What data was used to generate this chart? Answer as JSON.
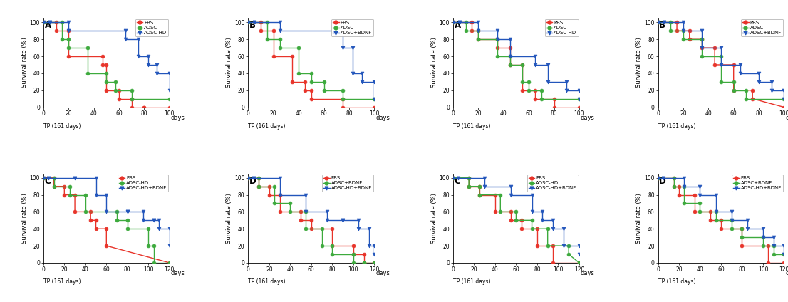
{
  "panels": [
    {
      "label": "A",
      "row": 0,
      "col": 0,
      "legend": [
        "PBS",
        "ADSC",
        "ADSC-HD"
      ],
      "colors": [
        "#e8342a",
        "#3daa3d",
        "#2255bb"
      ],
      "marker": [
        "o",
        "o",
        "v"
      ],
      "xmax": 100,
      "xticks": [
        0,
        20,
        40,
        60,
        80,
        100
      ],
      "series": [
        {
          "x": [
            0,
            10,
            10,
            20,
            20,
            47,
            47,
            50,
            50,
            60,
            60,
            70,
            70,
            80,
            80,
            100
          ],
          "y": [
            100,
            100,
            90,
            90,
            60,
            60,
            50,
            50,
            20,
            20,
            10,
            10,
            0,
            0,
            0,
            0
          ]
        },
        {
          "x": [
            0,
            15,
            15,
            20,
            20,
            35,
            35,
            50,
            50,
            57,
            57,
            70,
            70,
            100
          ],
          "y": [
            100,
            100,
            80,
            80,
            70,
            70,
            40,
            40,
            30,
            30,
            20,
            20,
            10,
            10
          ]
        },
        {
          "x": [
            0,
            5,
            5,
            20,
            20,
            65,
            65,
            75,
            75,
            83,
            83,
            90,
            90,
            100,
            100
          ],
          "y": [
            100,
            100,
            100,
            100,
            90,
            90,
            80,
            80,
            60,
            60,
            50,
            50,
            40,
            40,
            20
          ]
        }
      ]
    },
    {
      "label": "B",
      "row": 0,
      "col": 1,
      "legend": [
        "PBS",
        "ADSC",
        "ADSC+BDNF"
      ],
      "colors": [
        "#e8342a",
        "#3daa3d",
        "#2255bb"
      ],
      "marker": [
        "o",
        "o",
        "v"
      ],
      "xmax": 100,
      "xticks": [
        0,
        20,
        40,
        60,
        80,
        100
      ],
      "series": [
        {
          "x": [
            0,
            10,
            10,
            20,
            20,
            35,
            35,
            45,
            45,
            50,
            50,
            75,
            75,
            100
          ],
          "y": [
            100,
            100,
            90,
            90,
            60,
            60,
            30,
            30,
            20,
            20,
            10,
            10,
            0,
            0
          ]
        },
        {
          "x": [
            0,
            15,
            15,
            25,
            25,
            40,
            40,
            50,
            50,
            60,
            60,
            75,
            75,
            100
          ],
          "y": [
            100,
            100,
            80,
            80,
            70,
            70,
            40,
            40,
            30,
            30,
            20,
            20,
            10,
            10
          ]
        },
        {
          "x": [
            0,
            5,
            5,
            25,
            25,
            75,
            75,
            83,
            83,
            90,
            90,
            100,
            100
          ],
          "y": [
            100,
            100,
            100,
            100,
            90,
            90,
            70,
            70,
            40,
            40,
            30,
            30,
            10
          ]
        }
      ]
    },
    {
      "label": "C",
      "row": 1,
      "col": 0,
      "legend": [
        "PBS",
        "ADSC-HD",
        "ADSC-HD+BDNF"
      ],
      "colors": [
        "#e8342a",
        "#3daa3d",
        "#2255bb"
      ],
      "marker": [
        "o",
        "o",
        "v"
      ],
      "xmax": 120,
      "xticks": [
        0,
        20,
        40,
        60,
        80,
        100,
        120
      ],
      "series": [
        {
          "x": [
            0,
            10,
            10,
            20,
            20,
            30,
            30,
            45,
            45,
            50,
            50,
            60,
            60,
            120
          ],
          "y": [
            100,
            100,
            90,
            90,
            80,
            80,
            60,
            60,
            50,
            50,
            40,
            40,
            20,
            0
          ]
        },
        {
          "x": [
            0,
            10,
            10,
            25,
            25,
            40,
            40,
            70,
            70,
            80,
            80,
            100,
            100,
            105,
            105,
            120
          ],
          "y": [
            100,
            100,
            90,
            90,
            80,
            80,
            60,
            60,
            50,
            50,
            40,
            40,
            20,
            20,
            0,
            0
          ]
        },
        {
          "x": [
            0,
            5,
            5,
            30,
            30,
            50,
            50,
            60,
            60,
            80,
            80,
            95,
            95,
            105,
            105,
            110,
            110,
            120,
            120
          ],
          "y": [
            100,
            100,
            100,
            100,
            100,
            100,
            80,
            80,
            60,
            60,
            60,
            60,
            50,
            50,
            50,
            50,
            40,
            40,
            20
          ]
        }
      ]
    },
    {
      "label": "D",
      "row": 1,
      "col": 1,
      "legend": [
        "PBS",
        "ADSC+BDNF",
        "ADSC-HD+BDNF"
      ],
      "colors": [
        "#e8342a",
        "#3daa3d",
        "#2255bb"
      ],
      "marker": [
        "o",
        "o",
        "v"
      ],
      "xmax": 120,
      "xticks": [
        0,
        20,
        40,
        60,
        80,
        100,
        120
      ],
      "series": [
        {
          "x": [
            0,
            10,
            10,
            20,
            20,
            30,
            30,
            50,
            50,
            60,
            60,
            80,
            80,
            100,
            100,
            110,
            110,
            120
          ],
          "y": [
            100,
            100,
            90,
            90,
            80,
            80,
            60,
            60,
            50,
            50,
            40,
            40,
            20,
            20,
            10,
            10,
            0,
            0
          ]
        },
        {
          "x": [
            0,
            10,
            10,
            25,
            25,
            40,
            40,
            55,
            55,
            70,
            70,
            80,
            80,
            100,
            100,
            110,
            110,
            120
          ],
          "y": [
            100,
            100,
            90,
            90,
            70,
            70,
            60,
            60,
            40,
            40,
            20,
            20,
            10,
            10,
            0,
            0,
            0,
            0
          ]
        },
        {
          "x": [
            0,
            5,
            5,
            30,
            30,
            55,
            55,
            75,
            75,
            90,
            90,
            105,
            105,
            115,
            115,
            120,
            120
          ],
          "y": [
            100,
            100,
            100,
            100,
            80,
            80,
            60,
            60,
            50,
            50,
            50,
            50,
            40,
            40,
            20,
            20,
            10
          ]
        }
      ]
    },
    {
      "label": "A",
      "row": 0,
      "col": 2,
      "legend": [
        "PBS",
        "ADSC",
        "ADSC-HD"
      ],
      "colors": [
        "#e8342a",
        "#3daa3d",
        "#2255bb"
      ],
      "marker": [
        "o",
        "o",
        "v"
      ],
      "xmax": 100,
      "xticks": [
        0,
        20,
        40,
        60,
        80,
        100
      ],
      "series": [
        {
          "x": [
            0,
            15,
            15,
            20,
            20,
            35,
            35,
            45,
            45,
            55,
            55,
            65,
            65,
            80,
            80,
            100
          ],
          "y": [
            100,
            100,
            90,
            90,
            80,
            80,
            70,
            70,
            50,
            50,
            20,
            20,
            10,
            10,
            0,
            0
          ]
        },
        {
          "x": [
            0,
            10,
            10,
            20,
            20,
            35,
            35,
            45,
            45,
            55,
            55,
            60,
            60,
            70,
            70,
            100
          ],
          "y": [
            100,
            100,
            90,
            90,
            80,
            80,
            60,
            60,
            50,
            50,
            30,
            30,
            20,
            20,
            10,
            10
          ]
        },
        {
          "x": [
            0,
            5,
            5,
            20,
            20,
            35,
            35,
            45,
            45,
            65,
            65,
            75,
            75,
            90,
            90,
            100,
            100
          ],
          "y": [
            100,
            100,
            100,
            100,
            90,
            90,
            80,
            80,
            60,
            60,
            50,
            50,
            30,
            30,
            20,
            20,
            10
          ]
        }
      ]
    },
    {
      "label": "B",
      "row": 0,
      "col": 3,
      "legend": [
        "PBS",
        "ADSC",
        "ADSC+BDNF"
      ],
      "colors": [
        "#e8342a",
        "#3daa3d",
        "#2255bb"
      ],
      "marker": [
        "o",
        "o",
        "v"
      ],
      "xmax": 100,
      "xticks": [
        0,
        20,
        40,
        60,
        80,
        100
      ],
      "series": [
        {
          "x": [
            0,
            15,
            15,
            25,
            25,
            35,
            35,
            45,
            45,
            60,
            60,
            75,
            75,
            100
          ],
          "y": [
            100,
            100,
            90,
            90,
            80,
            80,
            70,
            70,
            50,
            50,
            20,
            20,
            10,
            0
          ]
        },
        {
          "x": [
            0,
            10,
            10,
            20,
            20,
            35,
            35,
            50,
            50,
            60,
            60,
            70,
            70,
            100
          ],
          "y": [
            100,
            100,
            90,
            90,
            80,
            80,
            60,
            60,
            30,
            30,
            20,
            20,
            10,
            10
          ]
        },
        {
          "x": [
            0,
            5,
            5,
            20,
            20,
            35,
            35,
            50,
            50,
            65,
            65,
            80,
            80,
            90,
            90,
            100,
            100
          ],
          "y": [
            100,
            100,
            100,
            100,
            90,
            90,
            70,
            70,
            50,
            50,
            40,
            40,
            30,
            30,
            20,
            20,
            10
          ]
        }
      ]
    },
    {
      "label": "C",
      "row": 1,
      "col": 2,
      "legend": [
        "PBS",
        "ADSC-HD",
        "ADSC-HD+BDNF"
      ],
      "colors": [
        "#e8342a",
        "#3daa3d",
        "#2255bb"
      ],
      "marker": [
        "o",
        "o",
        "v"
      ],
      "xmax": 120,
      "xticks": [
        0,
        20,
        40,
        60,
        80,
        100,
        120
      ],
      "series": [
        {
          "x": [
            0,
            15,
            15,
            25,
            25,
            40,
            40,
            55,
            55,
            65,
            65,
            80,
            80,
            95,
            95,
            120
          ],
          "y": [
            100,
            100,
            90,
            90,
            80,
            80,
            60,
            60,
            50,
            50,
            40,
            40,
            20,
            20,
            0,
            0
          ]
        },
        {
          "x": [
            0,
            15,
            15,
            25,
            25,
            45,
            45,
            60,
            60,
            75,
            75,
            90,
            90,
            110,
            110,
            120
          ],
          "y": [
            100,
            100,
            90,
            90,
            80,
            80,
            60,
            60,
            50,
            50,
            40,
            40,
            20,
            20,
            10,
            0
          ]
        },
        {
          "x": [
            0,
            5,
            5,
            30,
            30,
            55,
            55,
            75,
            75,
            85,
            85,
            95,
            95,
            105,
            105,
            120,
            120
          ],
          "y": [
            100,
            100,
            100,
            100,
            90,
            90,
            80,
            80,
            60,
            60,
            50,
            50,
            40,
            40,
            20,
            20,
            10
          ]
        }
      ]
    },
    {
      "label": "D",
      "row": 1,
      "col": 3,
      "legend": [
        "PBS",
        "ADSC+BDNF",
        "ADSC-HD+BDNF"
      ],
      "colors": [
        "#e8342a",
        "#3daa3d",
        "#2255bb"
      ],
      "marker": [
        "o",
        "o",
        "v"
      ],
      "xmax": 120,
      "xticks": [
        0,
        20,
        40,
        60,
        80,
        100,
        120
      ],
      "series": [
        {
          "x": [
            0,
            15,
            15,
            20,
            20,
            35,
            35,
            50,
            50,
            60,
            60,
            80,
            80,
            105,
            105,
            120
          ],
          "y": [
            100,
            100,
            90,
            90,
            80,
            80,
            60,
            60,
            50,
            50,
            40,
            40,
            20,
            20,
            0,
            0
          ]
        },
        {
          "x": [
            0,
            15,
            15,
            25,
            25,
            40,
            40,
            55,
            55,
            70,
            70,
            80,
            80,
            100,
            100,
            110,
            110,
            120
          ],
          "y": [
            100,
            100,
            90,
            90,
            70,
            70,
            60,
            60,
            50,
            50,
            40,
            40,
            30,
            30,
            20,
            20,
            10,
            10
          ]
        },
        {
          "x": [
            0,
            5,
            5,
            25,
            25,
            40,
            40,
            55,
            55,
            70,
            70,
            85,
            85,
            100,
            100,
            110,
            110,
            120,
            120
          ],
          "y": [
            100,
            100,
            100,
            100,
            90,
            90,
            80,
            80,
            60,
            60,
            50,
            50,
            40,
            40,
            30,
            30,
            20,
            20,
            10
          ]
        }
      ]
    }
  ],
  "ylabel": "Survival rate (%)",
  "tp_label": "TP (161 days)",
  "days_label": "days",
  "yticks": [
    0,
    20,
    40,
    60,
    80,
    100
  ],
  "bg": "#ffffff",
  "ms": 3.5,
  "lw": 1.0,
  "fs_tick": 5.5,
  "fs_label": 6.0,
  "fs_panel": 8.5,
  "fs_legend": 5.0
}
